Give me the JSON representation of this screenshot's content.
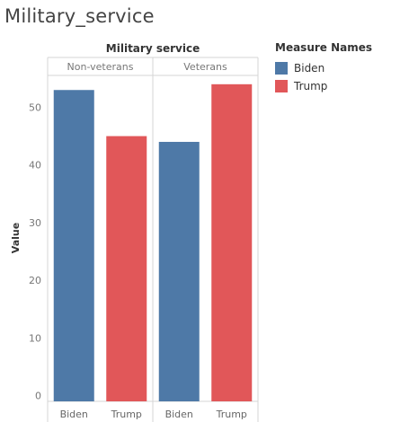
{
  "sheet_title": "Military_service",
  "legend": {
    "title": "Measure Names",
    "items": [
      {
        "label": "Biden",
        "color": "#4e79a7"
      },
      {
        "label": "Trump",
        "color": "#e15759"
      }
    ]
  },
  "chart_data": {
    "type": "bar",
    "header": "Military service",
    "ylabel": "Value",
    "ylim": [
      0,
      56
    ],
    "yticks": [
      0,
      10,
      20,
      30,
      40,
      50
    ],
    "grid": false,
    "legend_position": "right",
    "panels": [
      {
        "label": "Non-veterans",
        "categories": [
          "Biden",
          "Trump"
        ],
        "values": [
          53,
          45
        ],
        "colors": [
          "#4e79a7",
          "#e15759"
        ]
      },
      {
        "label": "Veterans",
        "categories": [
          "Biden",
          "Trump"
        ],
        "values": [
          44,
          54
        ],
        "colors": [
          "#4e79a7",
          "#e15759"
        ]
      }
    ]
  }
}
